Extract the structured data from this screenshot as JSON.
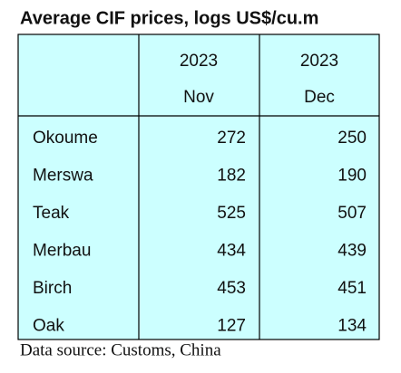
{
  "title": "Average CIF prices, logs US$/cu.m",
  "table": {
    "columns": [
      {
        "year": "2023",
        "month": "Nov"
      },
      {
        "year": "2023",
        "month": "Dec"
      }
    ],
    "rows": [
      [
        "Okoume",
        272,
        250
      ],
      [
        "Merswa",
        182,
        190
      ],
      [
        "Teak",
        525,
        507
      ],
      [
        "Merbau",
        434,
        439
      ],
      [
        "Birch",
        453,
        451
      ],
      [
        "Oak",
        127,
        134
      ]
    ]
  },
  "source": "Data source: Customs, China"
}
